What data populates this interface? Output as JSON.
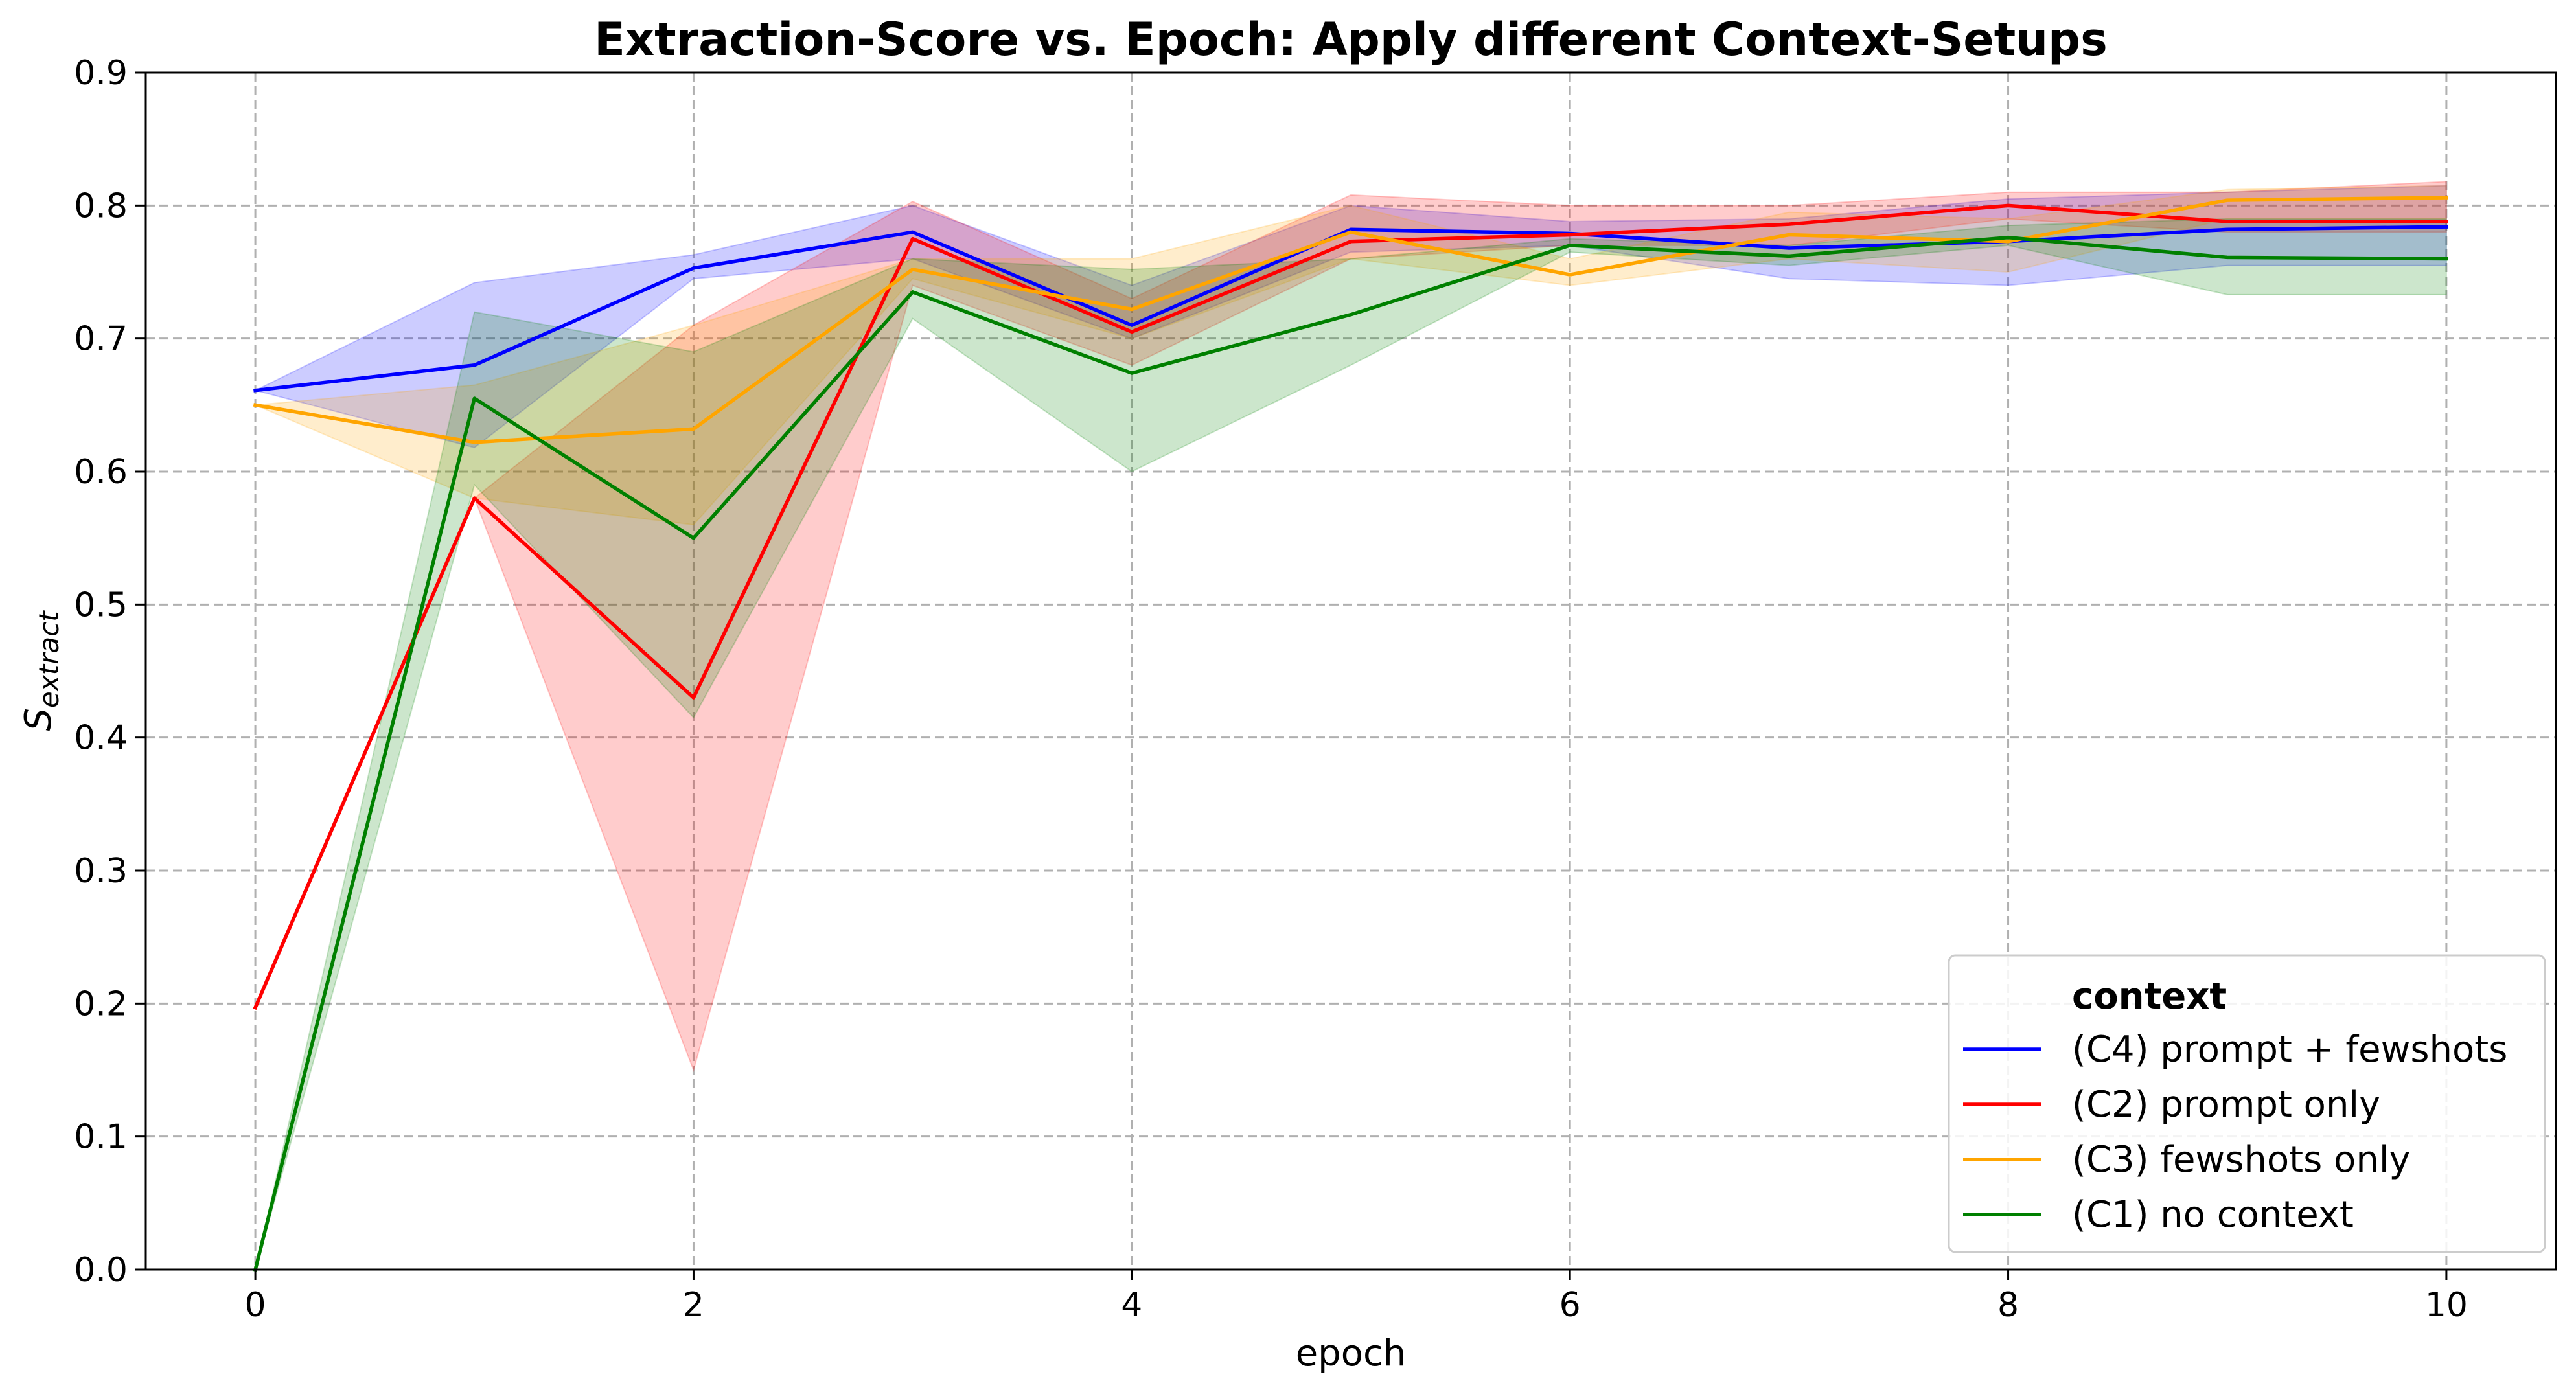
{
  "chart_data": {
    "type": "line",
    "title": "Extraction-Score vs. Epoch: Apply different Context-Setups",
    "xlabel": "epoch",
    "ylabel": {
      "base": "S",
      "subscript": "extract"
    },
    "xlim": [
      -0.5,
      10.5
    ],
    "ylim": [
      0,
      0.9
    ],
    "xticks": [
      0,
      2,
      4,
      6,
      8,
      10
    ],
    "xtick_labels": [
      "0",
      "2",
      "4",
      "6",
      "8",
      "10"
    ],
    "yticks": [
      0.0,
      0.1,
      0.2,
      0.3,
      0.4,
      0.5,
      0.6,
      0.7,
      0.8,
      0.9
    ],
    "ytick_labels": [
      "0.0",
      "0.1",
      "0.2",
      "0.3",
      "0.4",
      "0.5",
      "0.6",
      "0.7",
      "0.8",
      "0.9"
    ],
    "grid": true,
    "legend": {
      "title": "context",
      "placement": "lower-right"
    },
    "x": [
      0,
      1,
      2,
      3,
      4,
      5,
      6,
      7,
      8,
      9,
      10
    ],
    "series": [
      {
        "name": "(C4) prompt + fewshots",
        "color": "#0000ff",
        "values": [
          0.661,
          0.68,
          0.753,
          0.78,
          0.71,
          0.782,
          0.779,
          0.768,
          0.773,
          0.782,
          0.784
        ],
        "band_lower": [
          0.661,
          0.618,
          0.745,
          0.76,
          0.7,
          0.765,
          0.77,
          0.745,
          0.74,
          0.755,
          0.755
        ],
        "band_upper": [
          0.661,
          0.742,
          0.763,
          0.8,
          0.74,
          0.8,
          0.788,
          0.79,
          0.805,
          0.81,
          0.815
        ]
      },
      {
        "name": "(C2) prompt only",
        "color": "#ff0000",
        "values": [
          0.197,
          0.58,
          0.43,
          0.775,
          0.705,
          0.773,
          0.778,
          0.786,
          0.8,
          0.788,
          0.788
        ],
        "band_lower": [
          0.197,
          0.58,
          0.15,
          0.74,
          0.68,
          0.76,
          0.77,
          0.77,
          0.79,
          0.78,
          0.78
        ],
        "band_upper": [
          0.197,
          0.58,
          0.71,
          0.803,
          0.73,
          0.808,
          0.8,
          0.8,
          0.81,
          0.81,
          0.818
        ]
      },
      {
        "name": "(C3) fewshots only",
        "color": "#ffa500",
        "values": [
          0.65,
          0.622,
          0.632,
          0.752,
          0.722,
          0.78,
          0.748,
          0.778,
          0.773,
          0.804,
          0.806
        ],
        "band_lower": [
          0.65,
          0.58,
          0.56,
          0.745,
          0.7,
          0.76,
          0.74,
          0.76,
          0.75,
          0.79,
          0.79
        ],
        "band_upper": [
          0.65,
          0.665,
          0.71,
          0.76,
          0.76,
          0.8,
          0.76,
          0.795,
          0.79,
          0.812,
          0.815
        ]
      },
      {
        "name": "(C1) no context",
        "color": "#008000",
        "values": [
          0.0,
          0.655,
          0.55,
          0.735,
          0.674,
          0.718,
          0.77,
          0.762,
          0.776,
          0.761,
          0.76
        ],
        "band_lower": [
          0.0,
          0.59,
          0.415,
          0.715,
          0.6,
          0.68,
          0.765,
          0.755,
          0.77,
          0.733,
          0.733
        ],
        "band_upper": [
          0.0,
          0.72,
          0.69,
          0.76,
          0.752,
          0.76,
          0.775,
          0.77,
          0.785,
          0.79,
          0.79
        ]
      }
    ]
  }
}
